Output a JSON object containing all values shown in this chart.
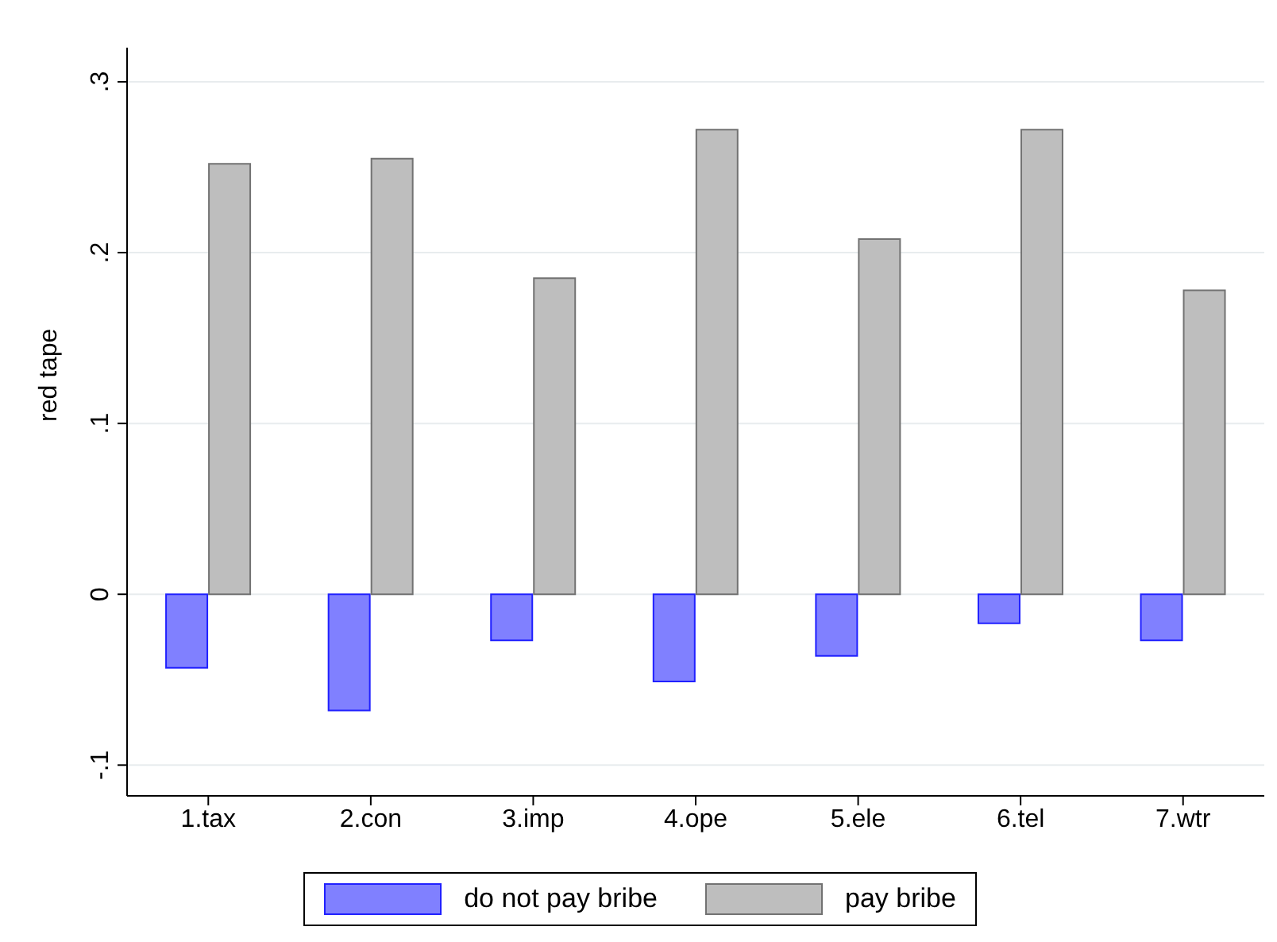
{
  "chart_data": {
    "type": "bar",
    "ylabel": "red tape",
    "categories": [
      "1.tax",
      "2.con",
      "3.imp",
      "4.ope",
      "5.ele",
      "6.tel",
      "7.wtr"
    ],
    "series": [
      {
        "name": "do not pay bribe",
        "color": "#8080ff",
        "values": [
          -0.043,
          -0.068,
          -0.027,
          -0.051,
          -0.036,
          -0.017,
          -0.027
        ]
      },
      {
        "name": "pay bribe",
        "color": "#bebebe",
        "values": [
          0.252,
          0.255,
          0.185,
          0.272,
          0.208,
          0.272,
          0.178
        ]
      }
    ],
    "ylim": [
      -0.118,
      0.32
    ],
    "yticks": [
      {
        "value": -0.1,
        "label": "-.1"
      },
      0,
      {
        "value": 0.1,
        "label": ".1"
      },
      {
        "value": 0.2,
        "label": ".2"
      },
      {
        "value": 0.3,
        "label": ".3"
      }
    ],
    "grid": "y",
    "legend": "bottom"
  }
}
